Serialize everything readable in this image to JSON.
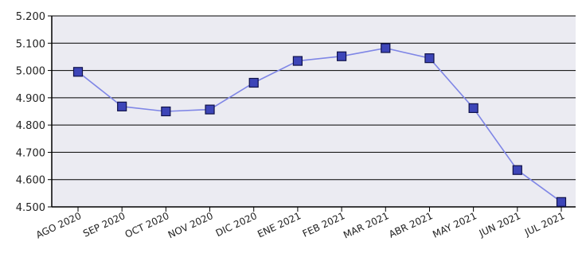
{
  "chart_data": {
    "type": "line",
    "categories": [
      "AGO 2020",
      "SEP 2020",
      "OCT 2020",
      "NOV 2020",
      "DIC 2020",
      "ENE 2021",
      "FEB 2021",
      "MAR 2021",
      "ABR 2021",
      "MAY 2021",
      "JUN 2021",
      "JUL 2021"
    ],
    "series": [
      {
        "values": [
          4.995,
          4.868,
          4.85,
          4.857,
          4.955,
          5.035,
          5.052,
          5.082,
          5.045,
          4.862,
          4.635,
          4.518
        ]
      }
    ],
    "y_ticks": [
      "4.500",
      "4.600",
      "4.700",
      "4.800",
      "4.900",
      "5.000",
      "5.100",
      "5.200"
    ],
    "ylim": [
      4.5,
      5.2
    ],
    "grid": true,
    "colors": {
      "line": "#7f86e6",
      "marker_fill": "#3d45b8",
      "marker_stroke": "#10124a",
      "plot_bg": "#ebebf2",
      "grid": "#000000"
    }
  }
}
